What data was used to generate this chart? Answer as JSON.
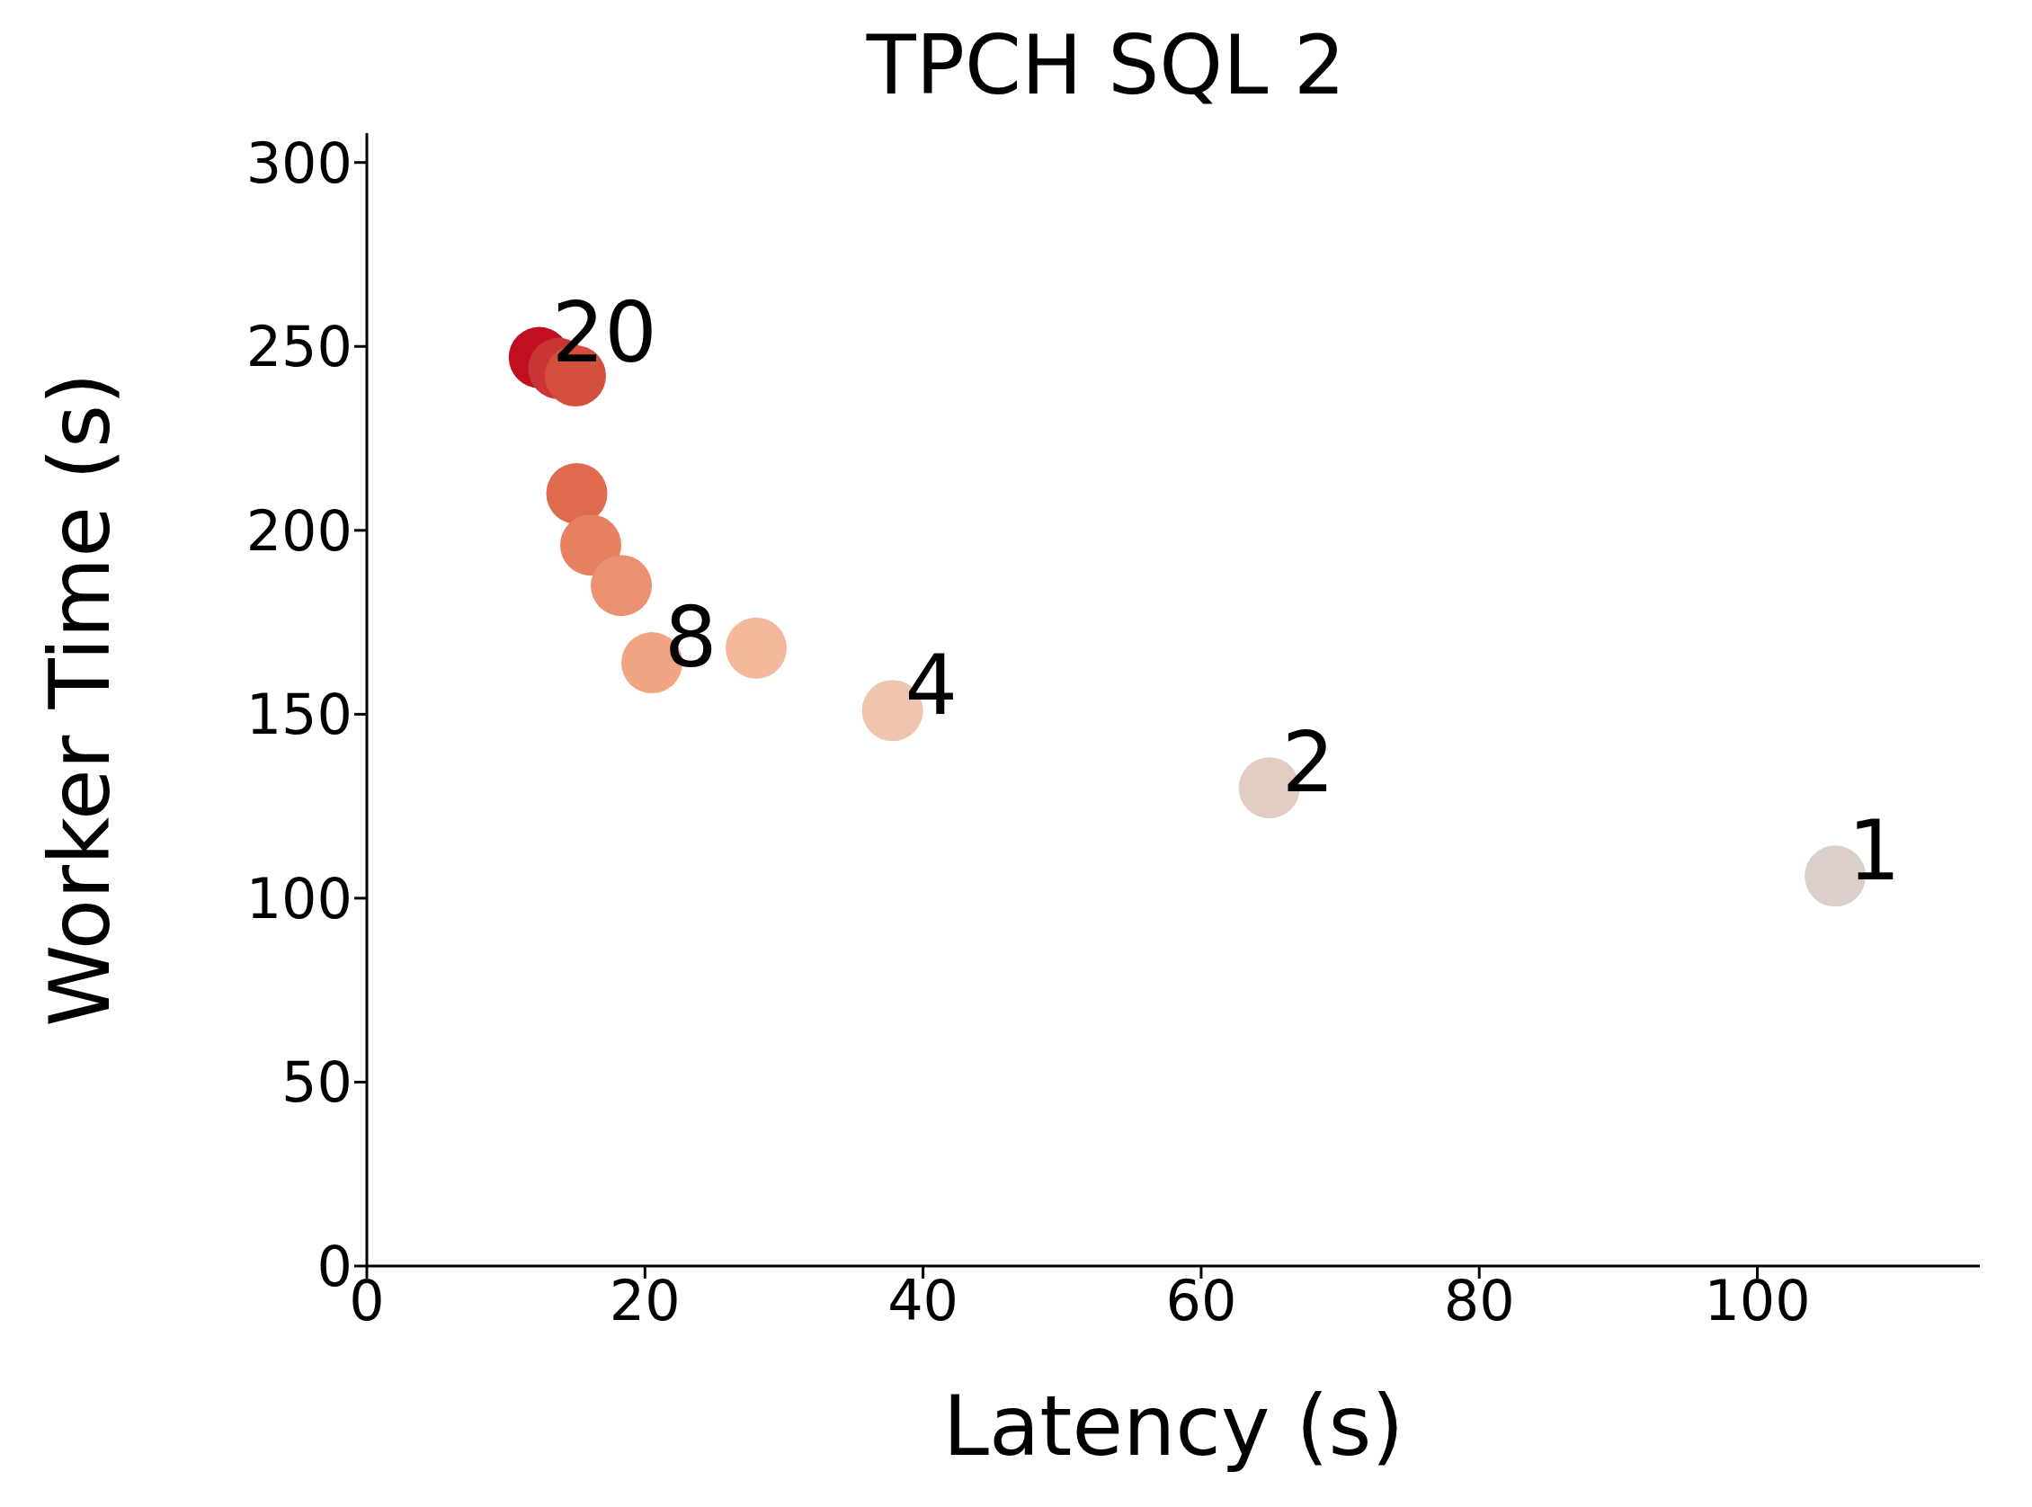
{
  "chart_data": {
    "type": "scatter",
    "title": "TPCH SQL 2",
    "xlabel": "Latency (s)",
    "ylabel": "Worker Time (s)",
    "x": [
      105.6,
      64.9,
      37.8,
      28,
      20.5,
      18.3,
      16.1,
      15.1,
      15,
      13.8,
      12.4
    ],
    "values": [
      106,
      130,
      151,
      168,
      164,
      185,
      196,
      210,
      242,
      244,
      247
    ],
    "colors": [
      "#ddd0cc",
      "#e3cdc2",
      "#efc5b0",
      "#f4b89c",
      "#f1a582",
      "#ec9072",
      "#e88062",
      "#de6b50",
      "#d4503e",
      "#c93535",
      "#c0101f"
    ],
    "marker": "circle",
    "annotations": [
      {
        "text": "1",
        "x": 105.6,
        "y": 106
      },
      {
        "text": "2",
        "x": 64.9,
        "y": 130
      },
      {
        "text": "4",
        "x": 37.8,
        "y": 151
      },
      {
        "text": "8",
        "x": 20.5,
        "y": 164
      },
      {
        "text": "20",
        "x": 12.4,
        "y": 247
      }
    ],
    "xlim": [
      0,
      116
    ],
    "ylim": [
      0,
      308
    ],
    "xticks": [
      0,
      20,
      40,
      60,
      80,
      100
    ],
    "yticks": [
      0,
      50,
      100,
      150,
      200,
      250,
      300
    ],
    "grid": false,
    "legend": false
  }
}
